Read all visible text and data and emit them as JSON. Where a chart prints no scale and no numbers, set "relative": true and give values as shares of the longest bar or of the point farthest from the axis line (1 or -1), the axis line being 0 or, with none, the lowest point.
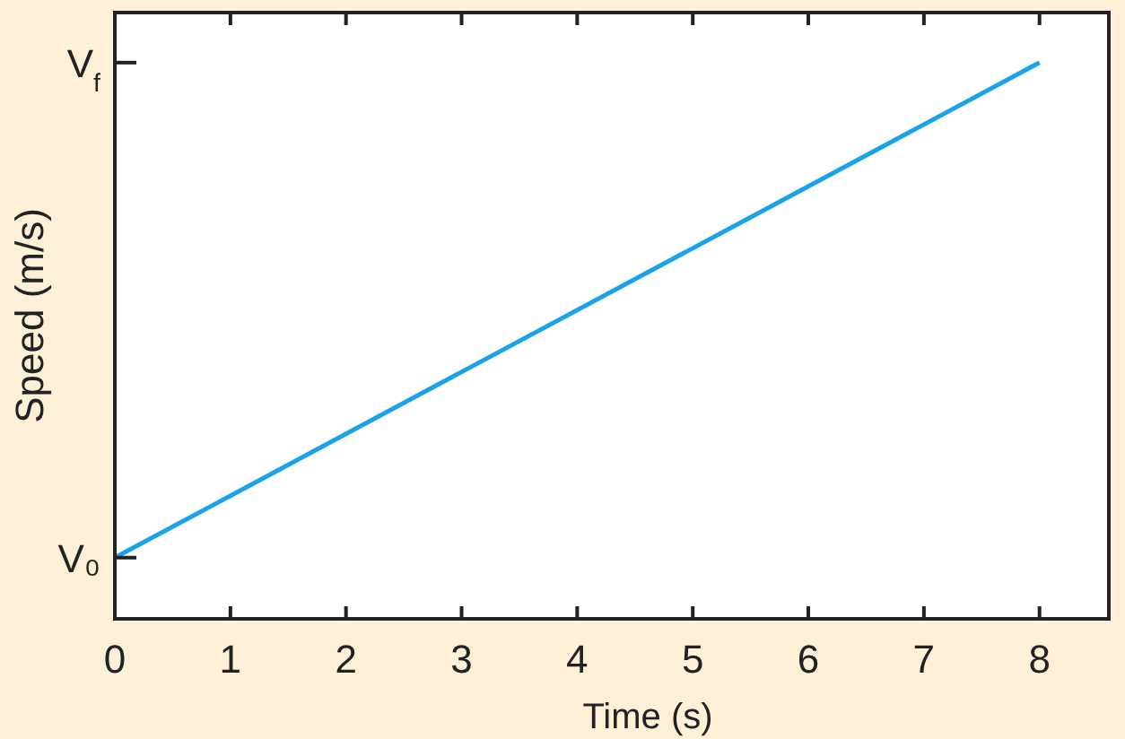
{
  "chart_data": {
    "type": "line",
    "relative": true,
    "xlabel": "Time (s)",
    "ylabel": "Speed (m/s)",
    "x": [
      0,
      8
    ],
    "xlim": [
      0,
      8.6
    ],
    "xticks": [
      0,
      1,
      2,
      3,
      4,
      5,
      6,
      7,
      8
    ],
    "series": [
      {
        "color": "#1aa3e8",
        "values": [
          0.11,
          1
        ]
      }
    ],
    "annotations": [
      "V₀",
      "V$_{f}$"
    ],
    "grid": false,
    "marker": "none",
    "line_style": "solid"
  }
}
